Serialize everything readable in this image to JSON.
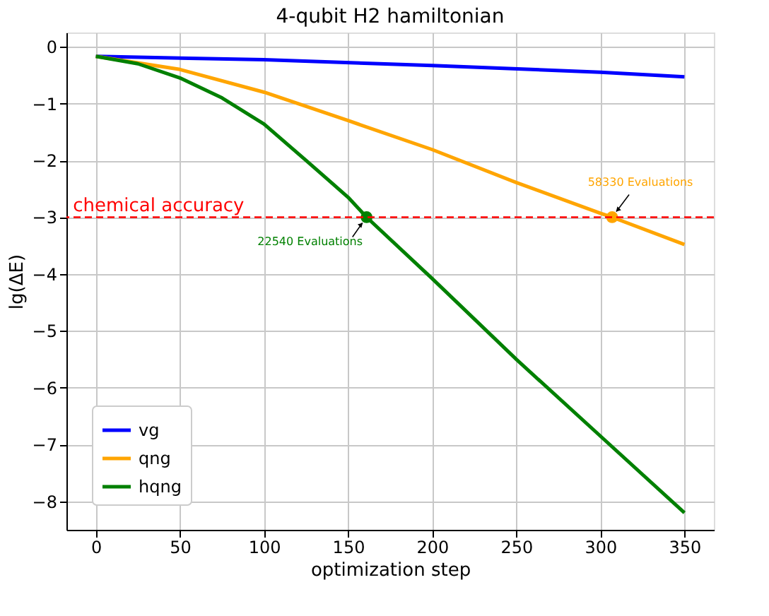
{
  "chart_data": {
    "type": "line",
    "title": "4-qubit H2 hamiltonian",
    "xlabel": "optimization step",
    "ylabel": "lg(ΔE)",
    "xlim": [
      -17.5,
      367.5
    ],
    "ylim": [
      -8.5,
      0.25
    ],
    "xticks": [
      0,
      50,
      100,
      150,
      200,
      250,
      300,
      350
    ],
    "yticks": [
      0,
      -1,
      -2,
      -3,
      -4,
      -5,
      -6,
      -7,
      -8
    ],
    "grid": true,
    "legend": "bottom left",
    "line_style": "solid",
    "marker": "none",
    "series": [
      {
        "name": "vg",
        "color": "#0000ff",
        "x": [
          0,
          100,
          200,
          300,
          350
        ],
        "values": [
          -0.17,
          -0.23,
          -0.33,
          -0.45,
          -0.53
        ]
      },
      {
        "name": "qng",
        "color": "#ffa500",
        "x": [
          0,
          50,
          100,
          150,
          200,
          250,
          300,
          307,
          350
        ],
        "values": [
          -0.17,
          -0.4,
          -0.8,
          -1.3,
          -1.81,
          -2.39,
          -2.93,
          -3.0,
          -3.48
        ]
      },
      {
        "name": "hqng",
        "color": "#008000",
        "x": [
          0,
          25,
          50,
          75,
          100,
          125,
          150,
          161,
          200,
          250,
          300,
          350
        ],
        "values": [
          -0.17,
          -0.3,
          -0.55,
          -0.9,
          -1.36,
          -2.0,
          -2.65,
          -3.0,
          -4.08,
          -5.5,
          -6.85,
          -8.2
        ]
      },
      {
        "type": "scatter",
        "marker": "circle",
        "color": "#008000",
        "x": [
          161
        ],
        "values": [
          -3.0
        ]
      },
      {
        "type": "scatter",
        "marker": "circle",
        "color": "#ffa500",
        "x": [
          307
        ],
        "values": [
          -3.0
        ]
      }
    ],
    "ref_lines": [
      {
        "axis": "y",
        "value": -3,
        "label": "chemical accuracy",
        "color": "#ff0000",
        "line_style": "dashed"
      }
    ],
    "annotations": [
      {
        "text": "22540 Evaluations",
        "x": 161,
        "y": -3.0
      },
      {
        "text": "58330 Evaluations",
        "x": 307,
        "y": -3.0
      }
    ]
  }
}
